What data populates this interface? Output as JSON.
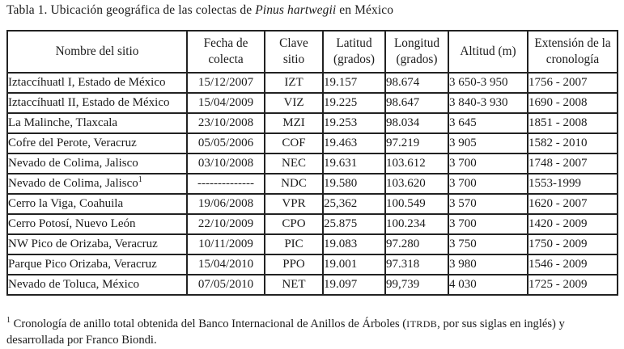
{
  "title": {
    "prefix": "Tabla 1. Ubicación geográfica de las colectas de ",
    "species": "Pinus hartwegii",
    "suffix": " en México"
  },
  "table": {
    "headers": [
      "Nombre del sitio",
      "Fecha de colecta",
      "Clave sitio",
      "Latitud (grados)",
      "Longitud (grados)",
      "Altitud (m)",
      "Extensión de la cronología"
    ],
    "rows": [
      {
        "site": "Iztaccíhuatl I, Estado de México",
        "sup": "",
        "date": "15/12/2007",
        "code": "IZT",
        "lat": "19.157",
        "lon": "98.674",
        "alt": "3 650-3 950",
        "chron": "1756 - 2007"
      },
      {
        "site": "Iztaccíhuatl II, Estado de México",
        "sup": "",
        "date": "15/04/2009",
        "code": "VIZ",
        "lat": "19.225",
        "lon": "98.647",
        "alt": "3 840-3 930",
        "chron": "1690 - 2008"
      },
      {
        "site": "La Malinche, Tlaxcala",
        "sup": "",
        "date": "23/10/2008",
        "code": "MZI",
        "lat": "19.253",
        "lon": "98.034",
        "alt": "3 645",
        "chron": "1851 - 2008"
      },
      {
        "site": "Cofre del Perote, Veracruz",
        "sup": "",
        "date": "05/05/2006",
        "code": "COF",
        "lat": "19.463",
        "lon": "97.219",
        "alt": "3 905",
        "chron": "1582 - 2010"
      },
      {
        "site": "Nevado de Colima, Jalisco",
        "sup": "",
        "date": "03/10/2008",
        "code": "NEC",
        "lat": "19.631",
        "lon": "103.612",
        "alt": "3 700",
        "chron": "1748 - 2007"
      },
      {
        "site": "Nevado de Colima, Jalisco",
        "sup": "1",
        "date": "--------------",
        "code": "NDC",
        "lat": "19.580",
        "lon": "103.620",
        "alt": "3 700",
        "chron": "1553-1999"
      },
      {
        "site": "Cerro la Viga, Coahuila",
        "sup": "",
        "date": "19/06/2008",
        "code": "VPR",
        "lat": "25,362",
        "lon": "100.549",
        "alt": "3 570",
        "chron": "1620 - 2007"
      },
      {
        "site": "Cerro Potosí, Nuevo León",
        "sup": "",
        "date": "22/10/2009",
        "code": "CPO",
        "lat": "25.875",
        "lon": "100.234",
        "alt": "3 700",
        "chron": "1420 - 2009"
      },
      {
        "site": "NW Pico de Orizaba, Veracruz",
        "sup": "",
        "date": "10/11/2009",
        "code": "PIC",
        "lat": "19.083",
        "lon": "97.280",
        "alt": "3 750",
        "chron": "1750 - 2009"
      },
      {
        "site": "Parque Pico Orizaba, Veracruz",
        "sup": "",
        "date": "15/04/2010",
        "code": "PPO",
        "lat": "19.001",
        "lon": "97.318",
        "alt": "3 980",
        "chron": "1546 - 2009"
      },
      {
        "site": "Nevado de Toluca, México",
        "sup": "",
        "date": "07/05/2010",
        "code": "NET",
        "lat": "19.097",
        "lon": "99,739",
        "alt": "4 030",
        "chron": "1725 - 2009"
      }
    ]
  },
  "footnote": {
    "sup": "1",
    "prefix": " Cronología de anillo total obtenida del Banco Internacional de Anillos de Árboles (",
    "acronym": "ITRDB",
    "suffix": ", por sus siglas en inglés) y desarrollada por Franco Biondi."
  }
}
